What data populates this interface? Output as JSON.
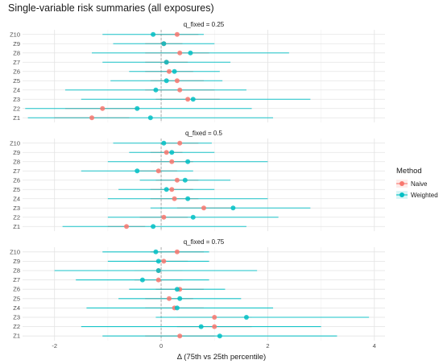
{
  "chart_data": {
    "type": "scatter",
    "subtype": "dot-and-interval (forest plot), faceted",
    "title": "Single-variable risk summaries (all exposures)",
    "xlabel": "Δ (75th vs 25th percentile)",
    "ylabel": "",
    "xlim": [
      -2.6,
      4.2
    ],
    "x_ticks": [
      -2,
      0,
      2,
      4
    ],
    "reference_line": {
      "x": 0,
      "style": "dashed"
    },
    "grid": true,
    "categories": [
      "Z1",
      "Z2",
      "Z3",
      "Z4",
      "Z5",
      "Z6",
      "Z7",
      "Z8",
      "Z9",
      "Z10"
    ],
    "legend": {
      "title": "Method",
      "position": "right",
      "entries": [
        {
          "name": "Naive",
          "color": "#F8766D"
        },
        {
          "name": "Weighted",
          "color": "#00BFC4"
        }
      ]
    },
    "facets": [
      {
        "label": "q_fixed = 0.25",
        "series": [
          {
            "name": "Naive",
            "color": "#F8766D",
            "est": [
              -1.3,
              -1.1,
              0.5,
              0.35,
              0.3,
              0.15,
              0.1,
              0.35,
              0.05,
              0.3
            ],
            "lo": [
              -2.0,
              -1.8,
              -0.1,
              -0.3,
              -0.2,
              -0.3,
              -0.3,
              -0.3,
              -0.3,
              -0.2
            ],
            "hi": [
              -0.6,
              -0.4,
              1.1,
              1.0,
              0.8,
              0.6,
              0.5,
              0.9,
              0.4,
              0.7
            ]
          },
          {
            "name": "Weighted",
            "color": "#00BFC4",
            "est": [
              -0.2,
              -0.45,
              0.6,
              -0.1,
              0.1,
              0.25,
              0.1,
              0.55,
              0.05,
              -0.15
            ],
            "lo": [
              -2.5,
              -2.55,
              -1.5,
              -1.8,
              -0.95,
              -0.6,
              -1.1,
              -1.3,
              -0.9,
              -1.1
            ],
            "hi": [
              2.1,
              1.7,
              2.8,
              1.6,
              1.15,
              1.1,
              1.3,
              2.4,
              1.0,
              0.8
            ]
          }
        ]
      },
      {
        "label": "q_fixed = 0.5",
        "series": [
          {
            "name": "Naive",
            "color": "#F8766D",
            "est": [
              -0.65,
              0.05,
              0.8,
              0.25,
              0.2,
              0.3,
              -0.05,
              0.2,
              0.1,
              0.35
            ],
            "lo": [
              -1.0,
              -0.4,
              0.3,
              -0.2,
              -0.2,
              -0.1,
              -0.4,
              -0.2,
              -0.2,
              0.0
            ],
            "hi": [
              -0.3,
              0.5,
              1.3,
              0.7,
              0.6,
              0.7,
              0.3,
              0.6,
              0.4,
              0.7
            ]
          },
          {
            "name": "Weighted",
            "color": "#00BFC4",
            "est": [
              -0.15,
              0.6,
              1.35,
              0.5,
              0.1,
              0.45,
              -0.45,
              0.5,
              0.2,
              0.05
            ],
            "lo": [
              -1.85,
              -1.0,
              -0.2,
              -1.0,
              -0.8,
              -0.4,
              -1.5,
              -1.0,
              -0.6,
              -0.9
            ],
            "hi": [
              1.6,
              2.2,
              2.8,
              2.0,
              1.0,
              1.3,
              0.6,
              2.0,
              1.0,
              0.95
            ]
          }
        ]
      },
      {
        "label": "q_fixed = 0.75",
        "series": [
          {
            "name": "Naive",
            "color": "#F8766D",
            "est": [
              0.35,
              1.0,
              1.0,
              0.25,
              0.15,
              0.35,
              -0.05,
              -0.05,
              0.05,
              0.3
            ],
            "lo": [
              -0.3,
              0.3,
              0.3,
              -0.3,
              -0.3,
              -0.1,
              -0.5,
              -0.5,
              -0.4,
              -0.2
            ],
            "hi": [
              1.0,
              1.7,
              1.7,
              0.8,
              0.6,
              0.8,
              0.4,
              0.4,
              0.5,
              0.8
            ]
          },
          {
            "name": "Weighted",
            "color": "#00BFC4",
            "est": [
              1.1,
              0.75,
              1.6,
              0.3,
              0.35,
              0.3,
              -0.35,
              -0.05,
              -0.05,
              -0.1
            ],
            "lo": [
              -1.1,
              -1.5,
              -0.1,
              -1.4,
              -0.8,
              -0.6,
              -1.6,
              -2.0,
              -1.0,
              -1.1
            ],
            "hi": [
              3.3,
              3.0,
              3.9,
              2.1,
              1.5,
              1.2,
              0.9,
              1.8,
              0.9,
              0.9
            ]
          }
        ]
      }
    ]
  }
}
